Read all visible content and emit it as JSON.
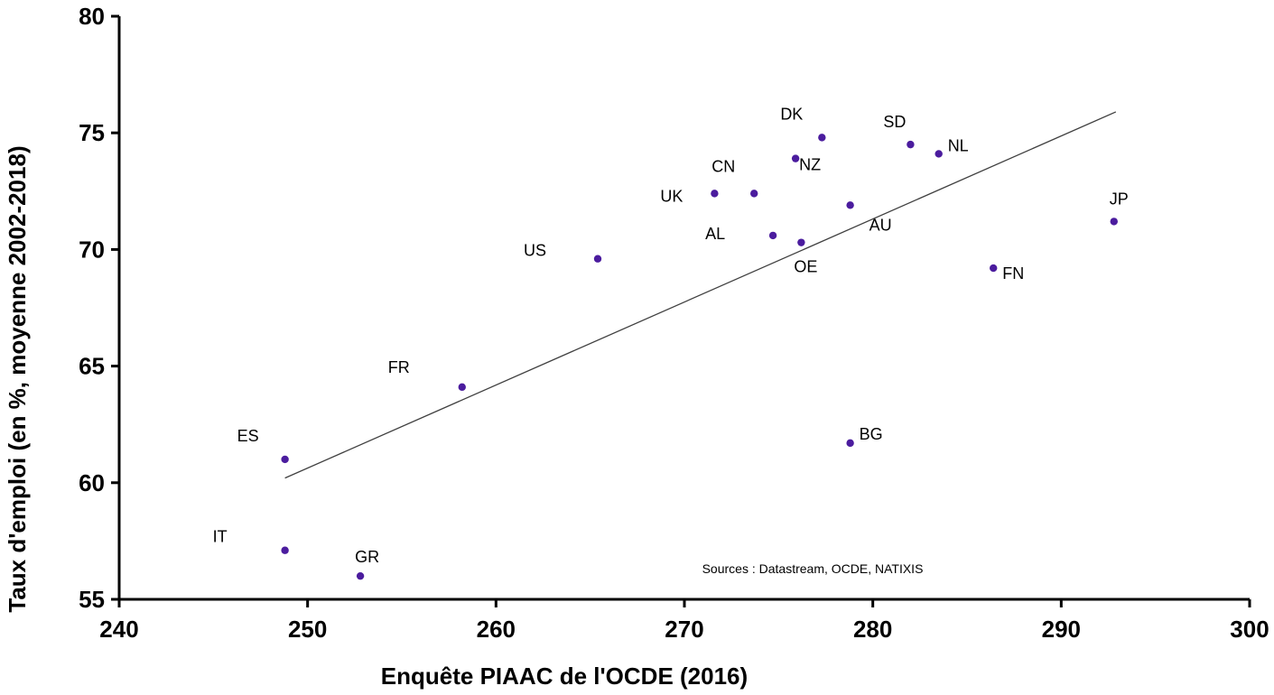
{
  "chart_data": {
    "type": "scatter",
    "title": "",
    "xlabel": "Enquête PIAAC de l'OCDE (2016)",
    "ylabel": "Taux d'emploi (en %,  moyenne 2002-2018)",
    "xlim": [
      240,
      300
    ],
    "ylim": [
      55,
      80
    ],
    "xticks": [
      240,
      250,
      260,
      270,
      280,
      290,
      300
    ],
    "yticks": [
      55,
      60,
      65,
      70,
      75,
      80
    ],
    "grid": false,
    "legend": "none",
    "point_color": "#4B1C9E",
    "trendline_color": "#404040",
    "points": [
      {
        "label": "IT",
        "x": 248.8,
        "y": 57.1
      },
      {
        "label": "ES",
        "x": 248.8,
        "y": 61.0
      },
      {
        "label": "GR",
        "x": 252.8,
        "y": 56.0
      },
      {
        "label": "FR",
        "x": 258.2,
        "y": 64.1
      },
      {
        "label": "US",
        "x": 265.4,
        "y": 69.6
      },
      {
        "label": "UK",
        "x": 271.6,
        "y": 72.4
      },
      {
        "label": "CN",
        "x": 273.7,
        "y": 72.4
      },
      {
        "label": "AL",
        "x": 274.7,
        "y": 70.6
      },
      {
        "label": "NZ",
        "x": 275.9,
        "y": 73.9
      },
      {
        "label": "OE",
        "x": 276.2,
        "y": 70.3
      },
      {
        "label": "DK",
        "x": 277.3,
        "y": 74.8
      },
      {
        "label": "AU",
        "x": 278.8,
        "y": 71.9
      },
      {
        "label": "BG",
        "x": 278.8,
        "y": 61.7
      },
      {
        "label": "SD",
        "x": 282.0,
        "y": 74.5
      },
      {
        "label": "NL",
        "x": 283.5,
        "y": 74.1
      },
      {
        "label": "FN",
        "x": 286.4,
        "y": 69.2
      },
      {
        "label": "JP",
        "x": 292.8,
        "y": 71.2
      }
    ],
    "trendline": {
      "x": [
        248.8,
        292.9
      ],
      "y": [
        60.2,
        75.9
      ]
    },
    "annotation": "Sources : Datastream, OCDE, NATIXIS"
  }
}
